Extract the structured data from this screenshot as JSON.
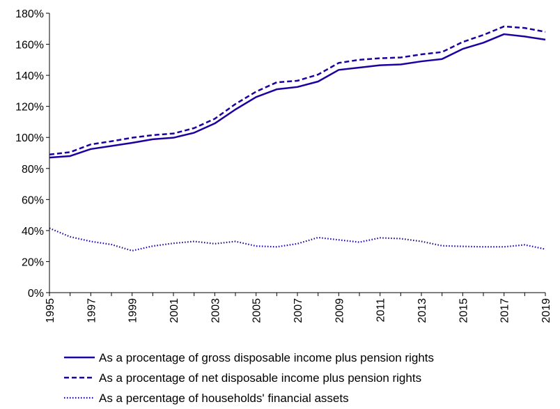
{
  "chart_data": {
    "type": "line",
    "title": "",
    "xlabel": "",
    "ylabel": "",
    "x": [
      1995,
      1996,
      1997,
      1998,
      1999,
      2000,
      2001,
      2002,
      2003,
      2004,
      2005,
      2006,
      2007,
      2008,
      2009,
      2010,
      2011,
      2012,
      2013,
      2014,
      2015,
      2016,
      2017,
      2018,
      2019
    ],
    "x_tick_labels": [
      "1995",
      "1997",
      "1999",
      "2001",
      "2003",
      "2005",
      "2007",
      "2009",
      "2011",
      "2013",
      "2015",
      "2017",
      "2019"
    ],
    "y_tick_labels": [
      "0%",
      "20%",
      "40%",
      "60%",
      "80%",
      "100%",
      "120%",
      "140%",
      "160%",
      "180%"
    ],
    "ylim": [
      0,
      180
    ],
    "y_unit": "%",
    "grid": false,
    "legend_position": "bottom",
    "line_color": "#1e00a0",
    "series": [
      {
        "name": "As a procentage of gross disposable income plus pension rights",
        "style": "solid",
        "values": [
          87,
          88,
          92.5,
          94.5,
          96.5,
          98.8,
          99.8,
          103,
          109,
          118,
          126,
          131,
          132.5,
          136,
          143.5,
          145,
          146.5,
          147,
          149,
          150.5,
          157,
          161,
          166.5,
          165,
          163
        ]
      },
      {
        "name": "As a procentage of net disposable income plus pension rights",
        "style": "dashed",
        "values": [
          89,
          90.5,
          95.5,
          97.5,
          99.8,
          101.5,
          102.5,
          106,
          112,
          121.5,
          129.5,
          135.5,
          136.5,
          140.5,
          148,
          150,
          151,
          151.5,
          153.5,
          155,
          161.5,
          166,
          171.5,
          170.5,
          168
        ]
      },
      {
        "name": "As a percentage of households' financial assets",
        "style": "dotted",
        "values": [
          41.5,
          36,
          33,
          31,
          27,
          30,
          31.8,
          33,
          31.5,
          33,
          30,
          29.5,
          31.5,
          35.5,
          34,
          32.5,
          35.3,
          34.8,
          33,
          30.2,
          29.8,
          29.5,
          29.5,
          30.8,
          28
        ]
      }
    ]
  }
}
